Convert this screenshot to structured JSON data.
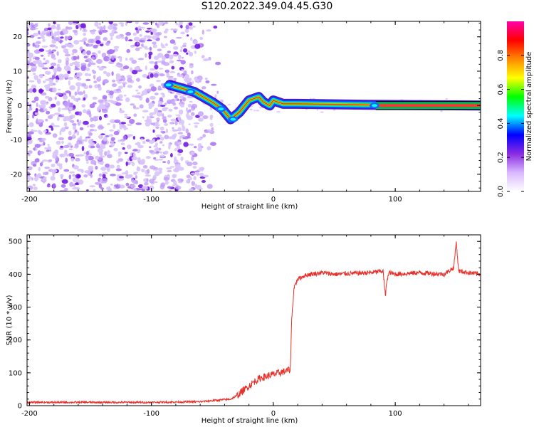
{
  "title": "S120.2022.349.04.45.G30",
  "chart_data": [
    {
      "type": "heatmap",
      "xlabel": "Height of straight line (km)",
      "ylabel": "Frequency (Hz)",
      "xlim": [
        -202,
        170
      ],
      "ylim": [
        -25,
        24.5
      ],
      "xticks": [
        -200,
        -100,
        0,
        100
      ],
      "yticks": [
        20,
        10,
        0,
        -10,
        -20
      ],
      "colorbar": {
        "label": "Normalized spectral amplitude",
        "range": [
          0.0,
          1.0
        ],
        "ticks": [
          0.0,
          0.2,
          0.4,
          0.6,
          0.8
        ],
        "colors": [
          "#ffffff",
          "#d9b8ff",
          "#8a2be2",
          "#0000ff",
          "#00ffff",
          "#00ff00",
          "#ffff00",
          "#ff8800",
          "#ff0000",
          "#ff00aa"
        ]
      },
      "ridge": [
        {
          "x": -85,
          "y": 6
        },
        {
          "x": -75,
          "y": 5
        },
        {
          "x": -65,
          "y": 4
        },
        {
          "x": -50,
          "y": 1
        },
        {
          "x": -42,
          "y": -1
        },
        {
          "x": -35,
          "y": -4
        },
        {
          "x": -28,
          "y": -2
        },
        {
          "x": -20,
          "y": 1.5
        },
        {
          "x": -12,
          "y": 2.5
        },
        {
          "x": -8,
          "y": 1
        },
        {
          "x": -3,
          "y": 0
        },
        {
          "x": 0,
          "y": 1.5
        },
        {
          "x": 8,
          "y": 0.5
        },
        {
          "x": 20,
          "y": 0.5
        },
        {
          "x": 80,
          "y": 0.2
        },
        {
          "x": 170,
          "y": 0
        }
      ]
    },
    {
      "type": "line",
      "xlabel": "Height of straight line (km)",
      "ylabel": "SNR (10 * v/v)",
      "xlim": [
        -202,
        170
      ],
      "ylim": [
        0,
        520
      ],
      "xticks": [
        -200,
        -100,
        0,
        100
      ],
      "yticks": [
        0,
        100,
        200,
        300,
        400,
        500
      ],
      "color": "#e8302a",
      "series": [
        {
          "x": [
            -202,
            -150,
            -100,
            -60,
            -35,
            -30,
            -25,
            -20,
            -15,
            -10,
            -5,
            0,
            5,
            10,
            14,
            15,
            17,
            20,
            25,
            30,
            40,
            50,
            60,
            80,
            90,
            92,
            93,
            95,
            100,
            120,
            140,
            148,
            150,
            152,
            160,
            170
          ],
          "y": [
            10,
            10,
            10,
            12,
            20,
            30,
            45,
            60,
            75,
            85,
            90,
            95,
            100,
            105,
            110,
            260,
            360,
            385,
            395,
            400,
            405,
            400,
            402,
            405,
            410,
            330,
            380,
            405,
            400,
            405,
            400,
            420,
            500,
            410,
            405,
            400
          ]
        }
      ]
    }
  ]
}
